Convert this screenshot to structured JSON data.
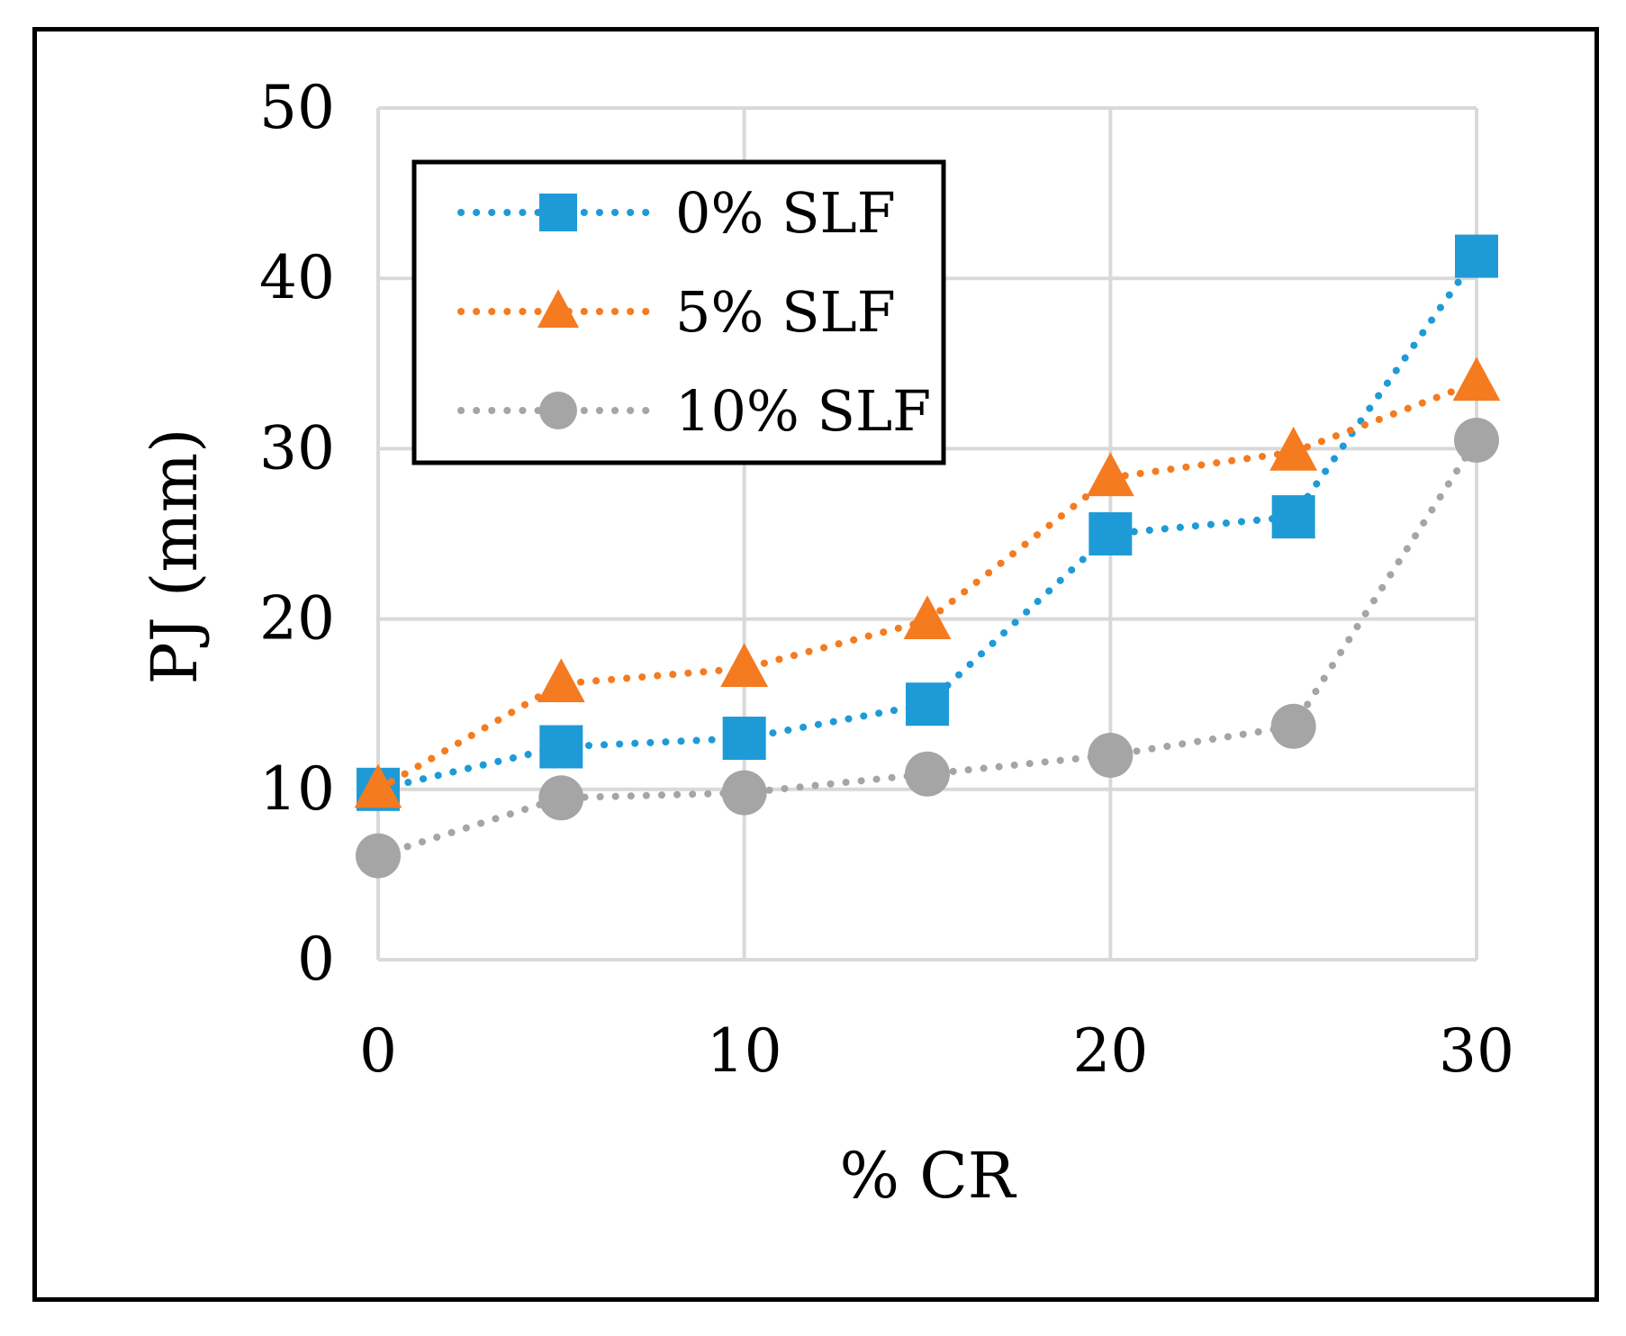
{
  "chart_data": {
    "type": "line",
    "title": "",
    "xlabel": "% CR",
    "ylabel": "PJ (mm)",
    "xlim": [
      0,
      30
    ],
    "ylim": [
      0,
      50
    ],
    "xticks": [
      0,
      10,
      20,
      30
    ],
    "yticks": [
      0,
      10,
      20,
      30,
      40,
      50
    ],
    "grid": true,
    "legend_position": "top-left",
    "x": [
      0,
      5,
      10,
      15,
      20,
      25,
      30
    ],
    "series": [
      {
        "name": "0% SLF",
        "marker": "square",
        "color": "#1E9BD7",
        "values": [
          10,
          12.5,
          13,
          15,
          25,
          26,
          41.3
        ]
      },
      {
        "name": "5% SLF",
        "marker": "triangle",
        "color": "#F47B20",
        "values": [
          10,
          16.2,
          17.1,
          19.9,
          28.3,
          29.8,
          33.9
        ]
      },
      {
        "name": "10% SLF",
        "marker": "circle",
        "color": "#A5A5A5",
        "values": [
          6.1,
          9.5,
          9.8,
          10.9,
          12,
          13.7,
          30.5
        ]
      }
    ]
  }
}
